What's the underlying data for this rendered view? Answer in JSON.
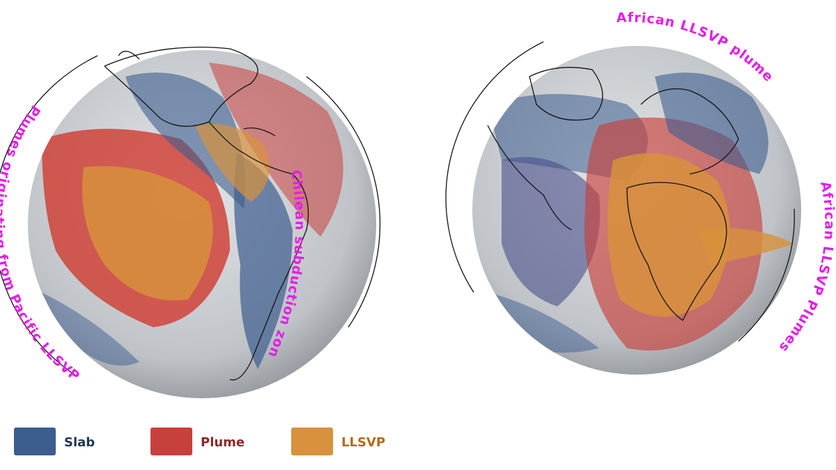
{
  "left_globe": {
    "annotations": [
      "Plumes originating from Pacific LLSVP",
      "Chilean subduction zone"
    ]
  },
  "right_globe": {
    "annotations": [
      "African LLSVP plume",
      "African LLSVP Plumes"
    ]
  },
  "legend": [
    {
      "label": "Slab",
      "color": "#3d5d8f"
    },
    {
      "label": "Plume",
      "color": "#c8403c"
    },
    {
      "label": "LLSVP",
      "color": "#d8913c"
    }
  ]
}
